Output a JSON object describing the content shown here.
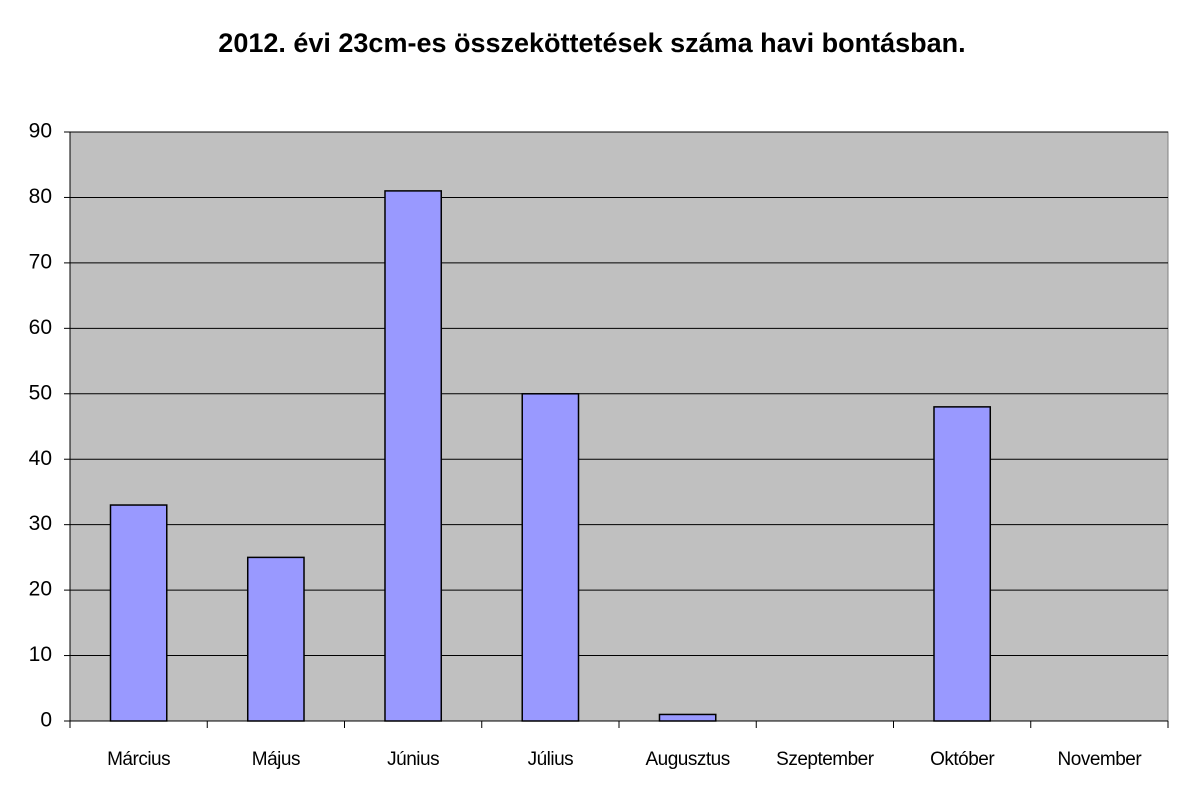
{
  "chart_data": {
    "type": "bar",
    "title": "2012. évi 23cm-es összeköttetések száma havi bontásban.",
    "categories": [
      "Március",
      "Május",
      "Június",
      "Július",
      "Augusztus",
      "Szeptember",
      "Október",
      "November"
    ],
    "values": [
      33,
      25,
      81,
      50,
      1,
      0,
      48,
      0
    ],
    "color": "#9999ff",
    "ylim": [
      0,
      90
    ],
    "yticks": [
      0,
      10,
      20,
      30,
      40,
      50,
      60,
      70,
      80,
      90
    ],
    "grid": true
  }
}
